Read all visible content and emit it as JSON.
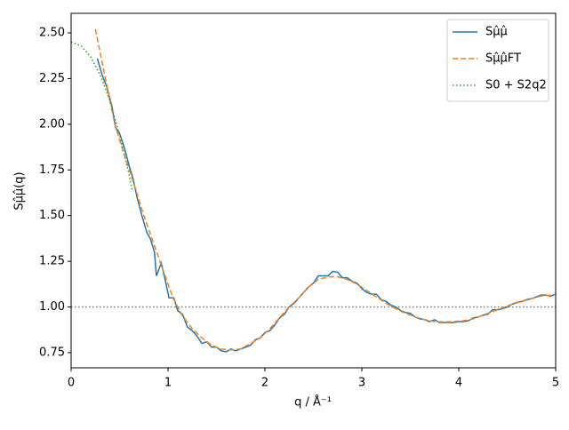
{
  "chart_data": {
    "type": "line",
    "x_label": "q / Å⁻¹",
    "y_label": "Sμ̂μ̂(q)",
    "xlim": [
      0,
      5
    ],
    "ylim": [
      0.667,
      2.607
    ],
    "xticks": [
      0,
      1,
      2,
      3,
      4,
      5
    ],
    "yticks": [
      {
        "value": 0.75,
        "label": "0.75"
      },
      {
        "value": 1.0,
        "label": "1.00"
      },
      {
        "value": 1.25,
        "label": "1.25"
      },
      {
        "value": 1.5,
        "label": "1.50"
      },
      {
        "value": 1.75,
        "label": "1.75"
      },
      {
        "value": 2.0,
        "label": "2.00"
      },
      {
        "value": 2.25,
        "label": "2.25"
      },
      {
        "value": 2.5,
        "label": "2.50"
      }
    ],
    "hline": 1.0,
    "hline_color": "#808080",
    "legend": "upper right",
    "series": [
      {
        "name": "Sμ̂μ̂",
        "color": "#1f77b4",
        "style": "solid",
        "x": [
          0.27,
          0.32,
          0.37,
          0.42,
          0.46,
          0.5,
          0.55,
          0.6,
          0.64,
          0.68,
          0.73,
          0.78,
          0.82,
          0.86,
          0.88,
          0.93,
          0.97,
          1.01,
          1.06,
          1.1,
          1.15,
          1.2,
          1.25,
          1.3,
          1.35,
          1.4,
          1.45,
          1.5,
          1.55,
          1.6,
          1.65,
          1.7,
          1.75,
          1.8,
          1.85,
          1.9,
          1.95,
          2.0,
          2.05,
          2.1,
          2.15,
          2.2,
          2.25,
          2.3,
          2.35,
          2.4,
          2.45,
          2.5,
          2.55,
          2.6,
          2.65,
          2.7,
          2.75,
          2.8,
          2.85,
          2.9,
          2.95,
          3.0,
          3.05,
          3.1,
          3.15,
          3.2,
          3.25,
          3.3,
          3.35,
          3.4,
          3.45,
          3.5,
          3.55,
          3.6,
          3.65,
          3.7,
          3.75,
          3.8,
          3.85,
          3.9,
          3.95,
          4.0,
          4.05,
          4.1,
          4.15,
          4.2,
          4.25,
          4.3,
          4.35,
          4.4,
          4.45,
          4.5,
          4.55,
          4.6,
          4.65,
          4.7,
          4.75,
          4.8,
          4.85,
          4.9,
          4.95,
          5.0
        ],
        "values": [
          2.36,
          2.27,
          2.2,
          2.1,
          1.98,
          1.95,
          1.87,
          1.77,
          1.7,
          1.6,
          1.5,
          1.41,
          1.37,
          1.3,
          1.17,
          1.24,
          1.15,
          1.05,
          1.05,
          0.98,
          0.96,
          0.89,
          0.87,
          0.84,
          0.8,
          0.81,
          0.78,
          0.78,
          0.76,
          0.755,
          0.77,
          0.76,
          0.77,
          0.78,
          0.79,
          0.82,
          0.83,
          0.86,
          0.87,
          0.9,
          0.94,
          0.96,
          1.0,
          1.02,
          1.05,
          1.08,
          1.11,
          1.13,
          1.17,
          1.17,
          1.17,
          1.195,
          1.19,
          1.16,
          1.16,
          1.14,
          1.13,
          1.1,
          1.08,
          1.07,
          1.07,
          1.04,
          1.03,
          1.01,
          1.0,
          0.98,
          0.97,
          0.965,
          0.945,
          0.935,
          0.93,
          0.92,
          0.93,
          0.915,
          0.915,
          0.915,
          0.915,
          0.92,
          0.92,
          0.925,
          0.94,
          0.945,
          0.955,
          0.96,
          0.985,
          0.985,
          0.99,
          1.0,
          1.015,
          1.025,
          1.03,
          1.04,
          1.045,
          1.055,
          1.065,
          1.065,
          1.06,
          1.07
        ]
      },
      {
        "name": "Sμ̂μ̂FT",
        "color": "#ff7f0e",
        "style": "dashed",
        "x": [
          0.25,
          0.35,
          0.45,
          0.55,
          0.65,
          0.75,
          0.85,
          0.95,
          1.05,
          1.15,
          1.25,
          1.35,
          1.45,
          1.55,
          1.65,
          1.75,
          1.85,
          1.95,
          2.05,
          2.15,
          2.25,
          2.35,
          2.45,
          2.55,
          2.65,
          2.75,
          2.85,
          2.95,
          3.05,
          3.15,
          3.25,
          3.35,
          3.45,
          3.55,
          3.65,
          3.75,
          3.85,
          3.95,
          4.05,
          4.15,
          4.25,
          4.35,
          4.45,
          4.55,
          4.65,
          4.75,
          4.85,
          4.95,
          5.0
        ],
        "values": [
          2.52,
          2.26,
          2.0,
          1.83,
          1.67,
          1.5,
          1.35,
          1.2,
          1.05,
          0.95,
          0.88,
          0.83,
          0.79,
          0.77,
          0.765,
          0.77,
          0.8,
          0.83,
          0.88,
          0.94,
          1.0,
          1.05,
          1.11,
          1.15,
          1.165,
          1.165,
          1.15,
          1.125,
          1.09,
          1.055,
          1.02,
          0.99,
          0.965,
          0.945,
          0.93,
          0.92,
          0.918,
          0.92,
          0.925,
          0.935,
          0.955,
          0.975,
          0.995,
          1.015,
          1.03,
          1.045,
          1.06,
          1.065,
          1.07
        ]
      },
      {
        "name": "S0 + S2q2",
        "color": "#2ca02c",
        "style": "dotted",
        "x": [
          0,
          0.1,
          0.2,
          0.3,
          0.4,
          0.5,
          0.6,
          0.63
        ],
        "values": [
          2.45,
          2.43,
          2.37,
          2.27,
          2.13,
          1.94,
          1.72,
          1.64
        ]
      }
    ]
  }
}
